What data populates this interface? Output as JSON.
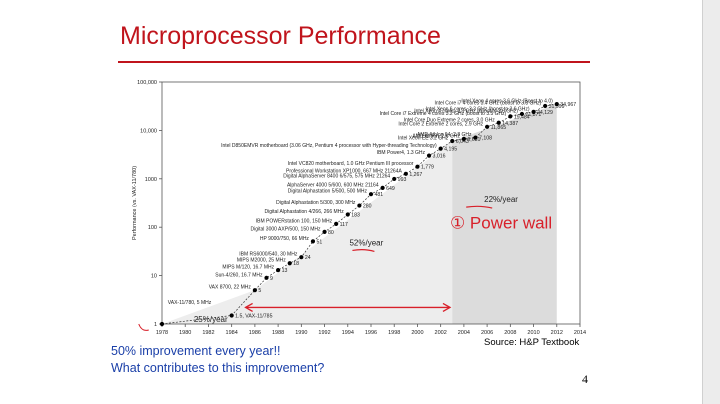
{
  "slide": {
    "title": "Microprocessor Performance",
    "source": "Source: H&P Textbook",
    "caption_line1": "50% improvement every year!!",
    "caption_line2": "What contributes to this improvement?",
    "page_number": "4",
    "handwritten_note": "① Power wall"
  },
  "colors": {
    "title": "#c0141c",
    "caption": "#1a3fa8",
    "annotation": "#d8202a",
    "shade_light": "#ededed",
    "shade_dark": "#dcdcdc"
  },
  "chart_data": {
    "type": "scatter",
    "ylabel": "Performance (vs. VAX-11/780)",
    "xlabel": "",
    "x_ticks": [
      "1978",
      "1980",
      "1982",
      "1984",
      "1986",
      "1988",
      "1990",
      "1992",
      "1994",
      "1996",
      "1998",
      "2000",
      "2002",
      "2004",
      "2006",
      "2008",
      "2010",
      "2012",
      "2014"
    ],
    "xlim": [
      1978,
      2014
    ],
    "y_scale": "log",
    "ylim": [
      1,
      100000
    ],
    "y_ticks": [
      "1",
      "10",
      "100",
      "1000",
      "10,000",
      "100,000"
    ],
    "growth_regions": [
      {
        "label": "25%/year",
        "from": 1978,
        "to": 1986
      },
      {
        "label": "52%/year",
        "from": 1986,
        "to": 2003
      },
      {
        "label": "22%/year",
        "from": 2003,
        "to": 2012
      }
    ],
    "points": [
      {
        "x": 1978,
        "y": 1,
        "value_label": "",
        "name": "VAX-11/780, 5 MHz"
      },
      {
        "x": 1984,
        "y": 1.5,
        "value_label": "1.5, VAX-11/785",
        "name": ""
      },
      {
        "x": 1986,
        "y": 5,
        "value_label": "5",
        "name": "VAX 8700, 22 MHz"
      },
      {
        "x": 1987,
        "y": 9,
        "value_label": "9",
        "name": "Sun-4/260, 16.7 MHz"
      },
      {
        "x": 1988,
        "y": 13,
        "value_label": "13",
        "name": "MIPS M/120, 16.7 MHz"
      },
      {
        "x": 1989,
        "y": 18,
        "value_label": "18",
        "name": "MIPS M2000, 25 MHz"
      },
      {
        "x": 1990,
        "y": 24,
        "value_label": "24",
        "name": "IBM RS6000/540, 30 MHz"
      },
      {
        "x": 1991,
        "y": 51,
        "value_label": "51",
        "name": "HP 9000/750, 66 MHz"
      },
      {
        "x": 1992,
        "y": 80,
        "value_label": "80",
        "name": "Digital 3000 AXP/500, 150 MHz"
      },
      {
        "x": 1993,
        "y": 117,
        "value_label": "117",
        "name": "IBM POWERstation 100, 150 MHz"
      },
      {
        "x": 1994,
        "y": 183,
        "value_label": "183",
        "name": "Digital Alphastation 4/266, 266 MHz"
      },
      {
        "x": 1995,
        "y": 280,
        "value_label": "280",
        "name": "Digital Alphastation 5/300, 300 MHz"
      },
      {
        "x": 1996,
        "y": 481,
        "value_label": "481",
        "name": "Digital Alphastation 5/500, 500 MHz"
      },
      {
        "x": 1997,
        "y": 649,
        "value_label": "649",
        "name": "AlphaServer 4000 5/600, 600 MHz 21164"
      },
      {
        "x": 1998,
        "y": 993,
        "value_label": "993",
        "name": "Digital AlphaServer 8400 6/575, 575 MHz 21264"
      },
      {
        "x": 1999,
        "y": 1267,
        "value_label": "1,267",
        "name": "Professional Workstation XP1000, 667 MHz 21264A"
      },
      {
        "x": 2000,
        "y": 1779,
        "value_label": "1,779",
        "name": "Intel VC820 motherboard, 1.0 GHz Pentium III processor"
      },
      {
        "x": 2001,
        "y": 3016,
        "value_label": "3,016",
        "name": "IBM Power4, 1.3 GHz"
      },
      {
        "x": 2002,
        "y": 4195,
        "value_label": "4,195",
        "name": "Intel D850EMVR motherboard (3.06 GHz, Pentium 4 processor with Hyper-threading Technology)"
      },
      {
        "x": 2003,
        "y": 6043,
        "value_label": "6,043",
        "name": "Intel Xeon EE 3.2 GHz"
      },
      {
        "x": 2004,
        "y": 6681,
        "value_label": "6,681",
        "name": "AMD Athlon, 2.6 GHz"
      },
      {
        "x": 2005,
        "y": 7108,
        "value_label": "7,108",
        "name": "AMD Athlon 64, 2.8 GHz"
      },
      {
        "x": 2006,
        "y": 11865,
        "value_label": "11,865",
        "name": "Intel Core 2 Extreme 2 cores, 2.9 GHz"
      },
      {
        "x": 2007,
        "y": 14387,
        "value_label": "14,387",
        "name": "Intel Core Duo Extreme 2 cores, 3.0 GHz"
      },
      {
        "x": 2008,
        "y": 19484,
        "value_label": "19,484",
        "name": "Intel Core i7 Extreme 4 cores 3.2 GHz (boost to 3.5 GHz)"
      },
      {
        "x": 2009,
        "y": 21871,
        "value_label": "21,871",
        "name": "Intel Xeon 4 cores, 3.3 GHz (boost to 3.6 GHz)"
      },
      {
        "x": 2010,
        "y": 24129,
        "value_label": "24,129",
        "name": "Intel Xeon 6 cores, 3.3 GHz (boost to 3.6 GHz)"
      },
      {
        "x": 2011,
        "y": 31999,
        "value_label": "31,999",
        "name": "Intel Core i7 4 cores 3.4 GHz (boost to 3.8 GHz)"
      },
      {
        "x": 2012,
        "y": 34967,
        "value_label": "34,967",
        "name": "Intel Xeon 4 cores 3.6 GHz (Boost to 4.0)"
      }
    ]
  }
}
